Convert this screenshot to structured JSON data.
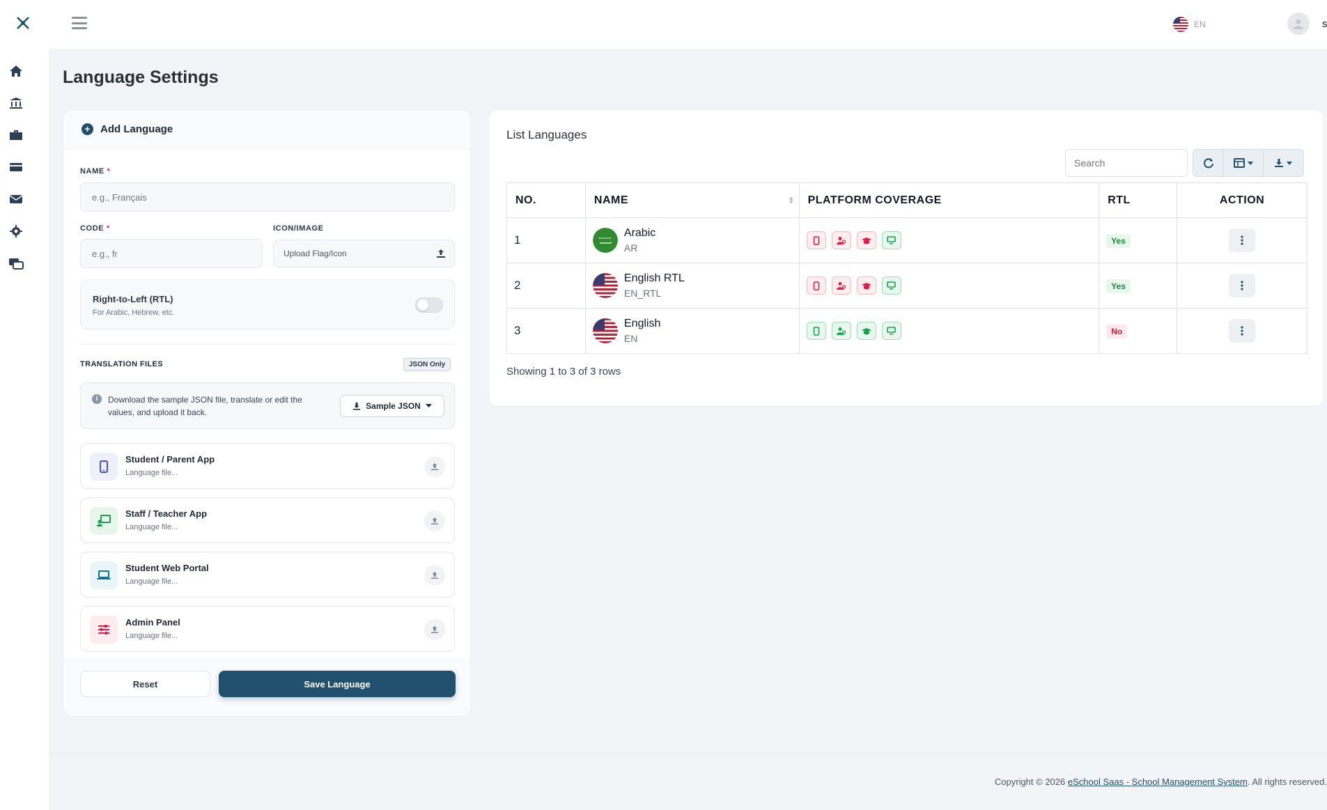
{
  "topbar": {
    "lang_code": "EN",
    "username": "super"
  },
  "page": {
    "title": "Language Settings"
  },
  "form": {
    "header": "Add Language",
    "name_label": "NAME",
    "required_mark": "*",
    "name_placeholder": "e.g., Français",
    "code_label": "CODE",
    "code_placeholder": "e.g., fr",
    "icon_label": "ICON/IMAGE",
    "icon_upload_text": "Upload Flag/Icon",
    "rtl_title": "Right-to-Left (RTL)",
    "rtl_subtitle": "For Arabic, Hebrew, etc.",
    "rtl_enabled": false,
    "translation_label": "TRANSLATION FILES",
    "json_badge": "JSON Only",
    "info_text": "Download the sample JSON file, translate or edit the values, and upload it back.",
    "sample_button": "Sample JSON",
    "files": [
      {
        "name": "Student / Parent App",
        "status": "Language file...",
        "icon": "mobile-phone-icon",
        "color": "#4f46e5"
      },
      {
        "name": "Staff / Teacher App",
        "status": "Language file...",
        "icon": "chalkboard-teacher-icon",
        "color": "#16a34a"
      },
      {
        "name": "Student Web Portal",
        "status": "Language file...",
        "icon": "laptop-icon",
        "color": "#0e7490"
      },
      {
        "name": "Admin Panel",
        "status": "Language file...",
        "icon": "sliders-icon",
        "color": "#e11d48"
      }
    ],
    "reset_button": "Reset",
    "save_button": "Save Language"
  },
  "list": {
    "title": "List Languages",
    "search_placeholder": "Search",
    "columns": [
      "NO.",
      "NAME",
      "PLATFORM COVERAGE",
      "RTL",
      "ACTION"
    ],
    "rows": [
      {
        "no": "1",
        "name": "Arabic",
        "code": "AR",
        "flag": "saudi-flag-icon",
        "coverage": [
          "red",
          "red",
          "red",
          "green"
        ],
        "rtl": "Yes"
      },
      {
        "no": "2",
        "name": "English RTL",
        "code": "EN_RTL",
        "flag": "us-flag-icon",
        "coverage": [
          "red",
          "red",
          "red",
          "green"
        ],
        "rtl": "Yes"
      },
      {
        "no": "3",
        "name": "English",
        "code": "EN",
        "flag": "us-flag-icon",
        "coverage": [
          "green",
          "green",
          "green",
          "green"
        ],
        "rtl": "No"
      }
    ],
    "showing": "Showing 1 to 3 of 3 rows"
  },
  "footer": {
    "prefix": "Copyright © 2026 ",
    "link": "eSchool Saas - School Management System",
    "suffix": ". All rights reserved."
  },
  "colors": {
    "primary": "#22506f",
    "danger": "#e11d48",
    "success": "#16a34a"
  }
}
